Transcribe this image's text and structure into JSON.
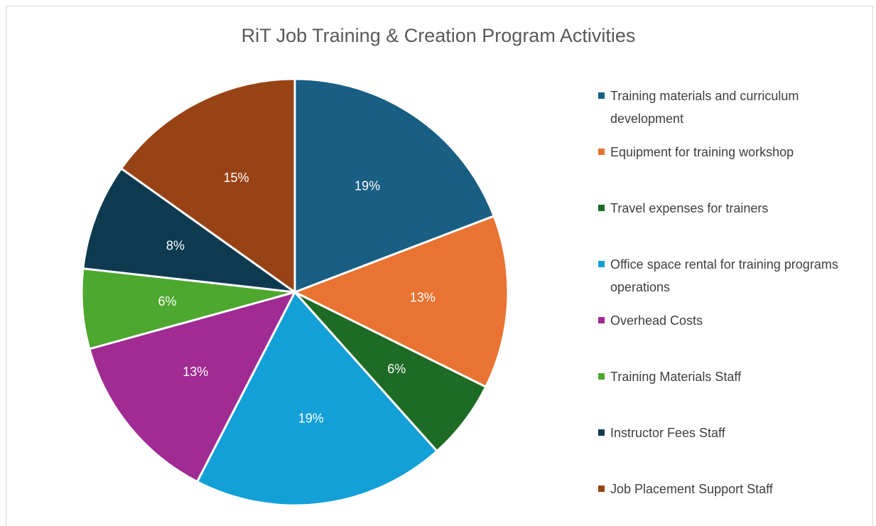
{
  "chart_data": {
    "type": "pie",
    "title": "RiT Job Training & Creation Program Activities",
    "categories": [
      "Training materials and curriculum development",
      "Equipment for training workshop",
      "Travel expenses for trainers",
      "Office space rental for training programs operations",
      "Overhead Costs",
      "Training Materials Staff",
      "Instructor Fees Staff",
      "Job Placement Support Staff"
    ],
    "values": [
      19,
      13,
      6,
      19,
      13,
      6,
      8,
      15
    ],
    "value_labels": [
      "19%",
      "13%",
      "6%",
      "19%",
      "13%",
      "6%",
      "8%",
      "15%"
    ],
    "colors": [
      "#195e83",
      "#e97332",
      "#1e6b25",
      "#12a0d7",
      "#a02b93",
      "#4ea72e",
      "#0e3a50",
      "#984315"
    ],
    "legend": "right"
  }
}
